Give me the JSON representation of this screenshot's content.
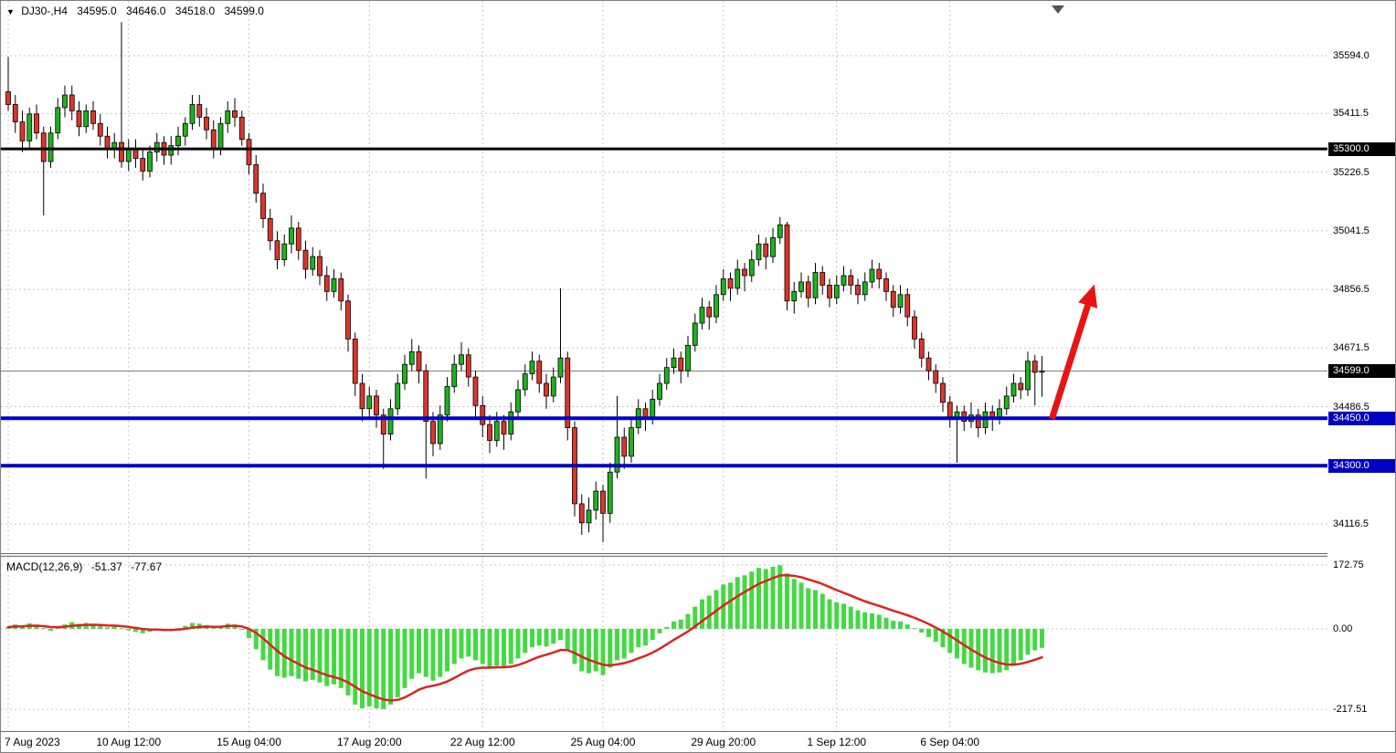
{
  "window": {
    "info": {
      "dropdown_icon": "▼",
      "symbol_period": "DJ30-,H4",
      "open": "34595.0",
      "high": "34646.0",
      "low": "34518.0",
      "close": "34599.0"
    }
  },
  "colors": {
    "candle_up": "#1db31d",
    "candle_down": "#dd352c",
    "candle_border": "#000000",
    "wick": "#000000",
    "macd_bar": "#44d944",
    "macd_signal": "#da2420",
    "grid": "#c6c6c6",
    "hline_black": "#000000",
    "hline_blue": "#0000c4",
    "current_price_line": "#808080",
    "arrow": "#e81414",
    "badge_black_bg": "#000000",
    "badge_blue_bg": "#0000c4"
  },
  "chart_data": [
    {
      "type": "candlestick",
      "title": "DJ30-,H4",
      "ylim": [
        34027,
        35744
      ],
      "price_axis": {
        "plain_ticks": [
          35594.0,
          35411.5,
          35226.5,
          35041.5,
          34856.5,
          34671.5,
          34486.5,
          34116.5
        ],
        "badges": [
          {
            "label": "35300.0",
            "price": 35300.0,
            "type": "hline-black"
          },
          {
            "label": "34599.0",
            "price": 34599.0,
            "type": "current-price"
          },
          {
            "label": "34450.0",
            "price": 34450.0,
            "type": "hline-blue"
          },
          {
            "label": "34300.0",
            "price": 34300.0,
            "type": "hline-blue"
          }
        ]
      },
      "hlines": [
        {
          "price": 35300.0,
          "color_key": "hline_black",
          "width": 3
        },
        {
          "price": 34450.0,
          "color_key": "hline_blue",
          "width": 4
        },
        {
          "price": 34300.0,
          "color_key": "hline_blue",
          "width": 4
        }
      ],
      "current_price": 34599.0,
      "time_ticks": [
        {
          "label": "7 Aug 2023",
          "index": 0
        },
        {
          "label": "10 Aug 12:00",
          "index": 17
        },
        {
          "label": "15 Aug 04:00",
          "index": 34
        },
        {
          "label": "17 Aug 20:00",
          "index": 51
        },
        {
          "label": "22 Aug 12:00",
          "index": 67
        },
        {
          "label": "25 Aug 04:00",
          "index": 84
        },
        {
          "label": "29 Aug 20:00",
          "index": 101
        },
        {
          "label": "1 Sep 12:00",
          "index": 117
        },
        {
          "label": "6 Sep 04:00",
          "index": 133
        }
      ],
      "arrow_annotation": {
        "from_index": 147.4,
        "from_price": 34448,
        "to_index": 153.4,
        "to_price": 34872
      },
      "candles": [
        [
          35480,
          35590,
          35420,
          35440
        ],
        [
          35440,
          35470,
          35350,
          35385
        ],
        [
          35385,
          35420,
          35290,
          35325
        ],
        [
          35325,
          35430,
          35300,
          35410
        ],
        [
          35410,
          35440,
          35330,
          35350
        ],
        [
          35350,
          35370,
          35090,
          35260
        ],
        [
          35260,
          35370,
          35240,
          35350
        ],
        [
          35350,
          35460,
          35330,
          35430
        ],
        [
          35430,
          35500,
          35400,
          35470
        ],
        [
          35470,
          35500,
          35390,
          35420
        ],
        [
          35420,
          35450,
          35340,
          35370
        ],
        [
          35370,
          35440,
          35350,
          35420
        ],
        [
          35420,
          35450,
          35360,
          35380
        ],
        [
          35380,
          35410,
          35310,
          35340
        ],
        [
          35340,
          35370,
          35270,
          35300
        ],
        [
          35300,
          35350,
          35270,
          35320
        ],
        [
          35320,
          35700,
          35240,
          35260
        ],
        [
          35260,
          35330,
          35230,
          35300
        ],
        [
          35300,
          35330,
          35240,
          35270
        ],
        [
          35270,
          35300,
          35200,
          35230
        ],
        [
          35230,
          35310,
          35210,
          35290
        ],
        [
          35290,
          35350,
          35260,
          35320
        ],
        [
          35320,
          35340,
          35250,
          35280
        ],
        [
          35280,
          35340,
          35250,
          35310
        ],
        [
          35310,
          35370,
          35280,
          35340
        ],
        [
          35340,
          35400,
          35310,
          35380
        ],
        [
          35380,
          35470,
          35360,
          35440
        ],
        [
          35440,
          35470,
          35370,
          35400
        ],
        [
          35400,
          35430,
          35330,
          35360
        ],
        [
          35360,
          35390,
          35270,
          35300
        ],
        [
          35300,
          35400,
          35280,
          35380
        ],
        [
          35380,
          35450,
          35350,
          35420
        ],
        [
          35420,
          35460,
          35370,
          35400
        ],
        [
          35400,
          35420,
          35310,
          35330
        ],
        [
          35330,
          35350,
          35220,
          35250
        ],
        [
          35250,
          35280,
          35130,
          35160
        ],
        [
          35160,
          35190,
          35050,
          35080
        ],
        [
          35080,
          35110,
          34980,
          35010
        ],
        [
          35010,
          35040,
          34920,
          34950
        ],
        [
          34950,
          35030,
          34930,
          35000
        ],
        [
          35000,
          35090,
          34970,
          35050
        ],
        [
          35050,
          35070,
          34950,
          34980
        ],
        [
          34980,
          35010,
          34890,
          34920
        ],
        [
          34920,
          34990,
          34900,
          34960
        ],
        [
          34960,
          34980,
          34870,
          34900
        ],
        [
          34900,
          34930,
          34820,
          34850
        ],
        [
          34850,
          34920,
          34830,
          34890
        ],
        [
          34890,
          34910,
          34790,
          34820
        ],
        [
          34820,
          34840,
          34660,
          34700
        ],
        [
          34700,
          34720,
          34520,
          34560
        ],
        [
          34560,
          34590,
          34440,
          34480
        ],
        [
          34480,
          34550,
          34450,
          34520
        ],
        [
          34520,
          34540,
          34420,
          34460
        ],
        [
          34460,
          34480,
          34290,
          34400
        ],
        [
          34400,
          34510,
          34380,
          34480
        ],
        [
          34480,
          34590,
          34460,
          34560
        ],
        [
          34560,
          34650,
          34540,
          34620
        ],
        [
          34620,
          34700,
          34600,
          34660
        ],
        [
          34660,
          34680,
          34560,
          34600
        ],
        [
          34600,
          34620,
          34260,
          34440
        ],
        [
          34440,
          34470,
          34330,
          34370
        ],
        [
          34370,
          34490,
          34350,
          34460
        ],
        [
          34460,
          34580,
          34440,
          34550
        ],
        [
          34550,
          34650,
          34530,
          34620
        ],
        [
          34620,
          34690,
          34600,
          34650
        ],
        [
          34650,
          34670,
          34550,
          34580
        ],
        [
          34580,
          34600,
          34450,
          34490
        ],
        [
          34490,
          34520,
          34390,
          34430
        ],
        [
          34430,
          34460,
          34340,
          34380
        ],
        [
          34380,
          34470,
          34360,
          34440
        ],
        [
          34440,
          34460,
          34350,
          34400
        ],
        [
          34400,
          34500,
          34380,
          34470
        ],
        [
          34470,
          34570,
          34450,
          34540
        ],
        [
          34540,
          34620,
          34520,
          34590
        ],
        [
          34590,
          34660,
          34570,
          34630
        ],
        [
          34630,
          34650,
          34530,
          34560
        ],
        [
          34560,
          34590,
          34480,
          34520
        ],
        [
          34520,
          34610,
          34500,
          34580
        ],
        [
          34580,
          34860,
          34560,
          34640
        ],
        [
          34640,
          34660,
          34380,
          34420
        ],
        [
          34420,
          34440,
          34140,
          34180
        ],
        [
          34180,
          34210,
          34082,
          34120
        ],
        [
          34120,
          34200,
          34090,
          34160
        ],
        [
          34160,
          34250,
          34130,
          34220
        ],
        [
          34220,
          34240,
          34059,
          34150
        ],
        [
          34150,
          34310,
          34120,
          34280
        ],
        [
          34280,
          34520,
          34260,
          34390
        ],
        [
          34390,
          34420,
          34290,
          34330
        ],
        [
          34330,
          34450,
          34310,
          34420
        ],
        [
          34420,
          34510,
          34400,
          34480
        ],
        [
          34480,
          34500,
          34410,
          34450
        ],
        [
          34450,
          34540,
          34430,
          34510
        ],
        [
          34510,
          34590,
          34490,
          34560
        ],
        [
          34560,
          34640,
          34540,
          34610
        ],
        [
          34610,
          34670,
          34590,
          34640
        ],
        [
          34640,
          34660,
          34560,
          34600
        ],
        [
          34600,
          34710,
          34580,
          34680
        ],
        [
          34680,
          34780,
          34660,
          34750
        ],
        [
          34750,
          34830,
          34730,
          34800
        ],
        [
          34800,
          34820,
          34730,
          34770
        ],
        [
          34770,
          34870,
          34750,
          34840
        ],
        [
          34840,
          34920,
          34820,
          34890
        ],
        [
          34890,
          34910,
          34820,
          34860
        ],
        [
          34860,
          34950,
          34840,
          34920
        ],
        [
          34920,
          34940,
          34850,
          34900
        ],
        [
          34900,
          34980,
          34880,
          34950
        ],
        [
          34950,
          35030,
          34930,
          35000
        ],
        [
          35000,
          35020,
          34920,
          34960
        ],
        [
          34960,
          35050,
          34940,
          35020
        ],
        [
          35020,
          35085,
          35000,
          35060
        ],
        [
          35060,
          35070,
          34790,
          34820
        ],
        [
          34820,
          34880,
          34780,
          34850
        ],
        [
          34850,
          34910,
          34830,
          34880
        ],
        [
          34880,
          34900,
          34800,
          34830
        ],
        [
          34830,
          34940,
          34810,
          34910
        ],
        [
          34910,
          34930,
          34840,
          34870
        ],
        [
          34870,
          34890,
          34800,
          34830
        ],
        [
          34830,
          34900,
          34810,
          34870
        ],
        [
          34870,
          34930,
          34850,
          34900
        ],
        [
          34900,
          34920,
          34840,
          34870
        ],
        [
          34870,
          34890,
          34810,
          34840
        ],
        [
          34840,
          34910,
          34820,
          34880
        ],
        [
          34880,
          34950,
          34860,
          34920
        ],
        [
          34920,
          34940,
          34860,
          34890
        ],
        [
          34890,
          34910,
          34820,
          34850
        ],
        [
          34850,
          34870,
          34770,
          34800
        ],
        [
          34800,
          34870,
          34780,
          34840
        ],
        [
          34840,
          34860,
          34740,
          34770
        ],
        [
          34770,
          34790,
          34670,
          34700
        ],
        [
          34700,
          34720,
          34610,
          34640
        ],
        [
          34640,
          34660,
          34570,
          34600
        ],
        [
          34600,
          34620,
          34530,
          34560
        ],
        [
          34560,
          34580,
          34470,
          34500
        ],
        [
          34500,
          34520,
          34420,
          34450
        ],
        [
          34450,
          34490,
          34310,
          34470
        ],
        [
          34470,
          34490,
          34410,
          34440
        ],
        [
          34440,
          34500,
          34420,
          34460
        ],
        [
          34460,
          34480,
          34390,
          34420
        ],
        [
          34420,
          34500,
          34400,
          34470
        ],
        [
          34470,
          34490,
          34410,
          34450
        ],
        [
          34450,
          34510,
          34430,
          34480
        ],
        [
          34480,
          34550,
          34460,
          34520
        ],
        [
          34520,
          34590,
          34500,
          34560
        ],
        [
          34560,
          34580,
          34510,
          34540
        ],
        [
          34540,
          34660,
          34520,
          34630
        ],
        [
          34630,
          34650,
          34490,
          34595
        ],
        [
          34595,
          34646,
          34518,
          34599
        ]
      ]
    },
    {
      "type": "bar",
      "name": "MACD",
      "label": "MACD(12,26,9)",
      "macd_value": "-51.37",
      "signal_value": "-77.67",
      "signal_period": 9,
      "ylim": [
        -217.51,
        172.75
      ],
      "axis_ticks": [
        {
          "label": "172.75",
          "value": 172.75
        },
        {
          "label": "0.00",
          "value": 0
        },
        {
          "label": "-217.51",
          "value": -217.51
        }
      ],
      "histogram": [
        5,
        12,
        8,
        15,
        10,
        2,
        -5,
        3,
        12,
        18,
        14,
        16,
        12,
        8,
        4,
        8,
        2,
        -4,
        -8,
        -12,
        -8,
        -2,
        -6,
        -4,
        2,
        8,
        16,
        14,
        10,
        2,
        8,
        14,
        12,
        -2,
        -25,
        -55,
        -85,
        -110,
        -128,
        -132,
        -128,
        -135,
        -142,
        -138,
        -145,
        -155,
        -150,
        -160,
        -180,
        -205,
        -215,
        -210,
        -215,
        -217,
        -205,
        -185,
        -160,
        -135,
        -120,
        -130,
        -140,
        -130,
        -115,
        -95,
        -80,
        -75,
        -85,
        -95,
        -105,
        -100,
        -105,
        -95,
        -80,
        -65,
        -50,
        -45,
        -48,
        -40,
        -30,
        -60,
        -95,
        -115,
        -120,
        -115,
        -125,
        -105,
        -85,
        -80,
        -65,
        -50,
        -45,
        -30,
        -12,
        5,
        20,
        25,
        40,
        60,
        80,
        90,
        105,
        120,
        125,
        140,
        145,
        155,
        165,
        162,
        168,
        172,
        150,
        135,
        125,
        110,
        105,
        95,
        80,
        72,
        68,
        60,
        50,
        45,
        42,
        38,
        30,
        22,
        20,
        12,
        2,
        -10,
        -22,
        -35,
        -50,
        -65,
        -80,
        -95,
        -105,
        -112,
        -118,
        -120,
        -118,
        -112,
        -100,
        -85,
        -70,
        -58,
        -51.37
      ]
    }
  ]
}
